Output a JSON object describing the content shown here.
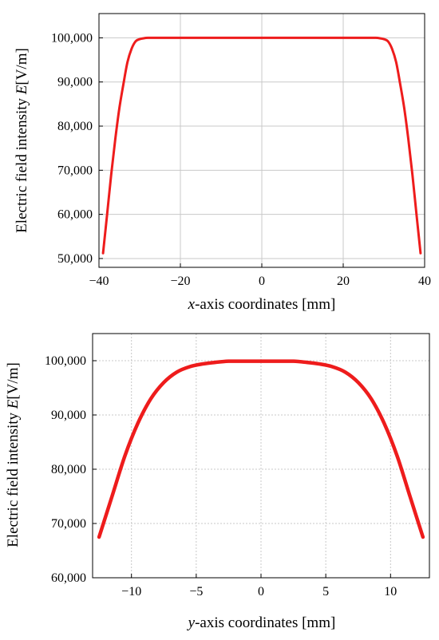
{
  "colors": {
    "series": "#ee1c1c",
    "grid": "#c8c8c8",
    "axis": "#000000"
  },
  "chart_data": [
    {
      "type": "line",
      "xlabel": {
        "var": "x",
        "rest": "-axis coordinates [mm]"
      },
      "ylabel": {
        "prefix": "Electric field intensity ",
        "var": "E",
        "unit": "[V/m]"
      },
      "xlim": [
        -40,
        40
      ],
      "ylim": [
        48000,
        105500
      ],
      "xticks": [
        -40,
        -20,
        0,
        20,
        40
      ],
      "xtick_labels": [
        "−40",
        "−20",
        "0",
        "20",
        "40"
      ],
      "yticks": [
        50000,
        60000,
        70000,
        80000,
        90000,
        100000
      ],
      "ytick_labels": [
        "50,000",
        "60,000",
        "70,000",
        "80,000",
        "90,000",
        "100,000"
      ],
      "grid": true,
      "series": [
        {
          "x": [
            -39,
            -38,
            -37,
            -36,
            -35,
            -34,
            -33,
            -32,
            -31,
            -30,
            -29,
            -28,
            -26,
            -20,
            -10,
            0,
            10,
            20,
            26,
            28,
            29,
            30,
            31,
            32,
            33,
            34,
            35,
            36,
            37,
            38,
            39
          ],
          "y": [
            51200,
            60000,
            69000,
            77000,
            84000,
            89500,
            94500,
            97500,
            99200,
            99700,
            99900,
            100000,
            100000,
            100000,
            100000,
            100000,
            100000,
            100000,
            100000,
            100000,
            99900,
            99700,
            99200,
            97500,
            94500,
            89500,
            84000,
            77000,
            69000,
            60000,
            51200
          ]
        }
      ]
    },
    {
      "type": "line",
      "xlabel": {
        "var": "y",
        "rest": "-axis coordinates [mm]"
      },
      "ylabel": {
        "prefix": "Electric field intensity ",
        "var": "E",
        "unit": "[V/m]"
      },
      "xlim": [
        -13,
        13
      ],
      "ylim": [
        60000,
        105000
      ],
      "xticks": [
        -10,
        -5,
        0,
        5,
        10
      ],
      "xtick_labels": [
        "−10",
        "−5",
        "0",
        "5",
        "10"
      ],
      "yticks": [
        60000,
        70000,
        80000,
        90000,
        100000
      ],
      "ytick_labels": [
        "60,000",
        "70,000",
        "80,000",
        "90,000",
        "100,000"
      ],
      "grid": true,
      "series": [
        {
          "x": [
            -12.5,
            -11.5,
            -10.5,
            -9.5,
            -8.5,
            -7.5,
            -6.5,
            -5.5,
            -4.5,
            -3.5,
            -2.5,
            -1.5,
            0,
            1.5,
            2.5,
            3.5,
            4.5,
            5.5,
            6.5,
            7.5,
            8.5,
            9.5,
            10.5,
            11.5,
            12.5
          ],
          "y": [
            67500,
            75000,
            82500,
            88500,
            93000,
            96000,
            97900,
            98900,
            99400,
            99700,
            99900,
            99900,
            99900,
            99900,
            99900,
            99700,
            99400,
            98900,
            97900,
            96000,
            93000,
            88500,
            82500,
            75000,
            67500
          ]
        }
      ]
    }
  ]
}
